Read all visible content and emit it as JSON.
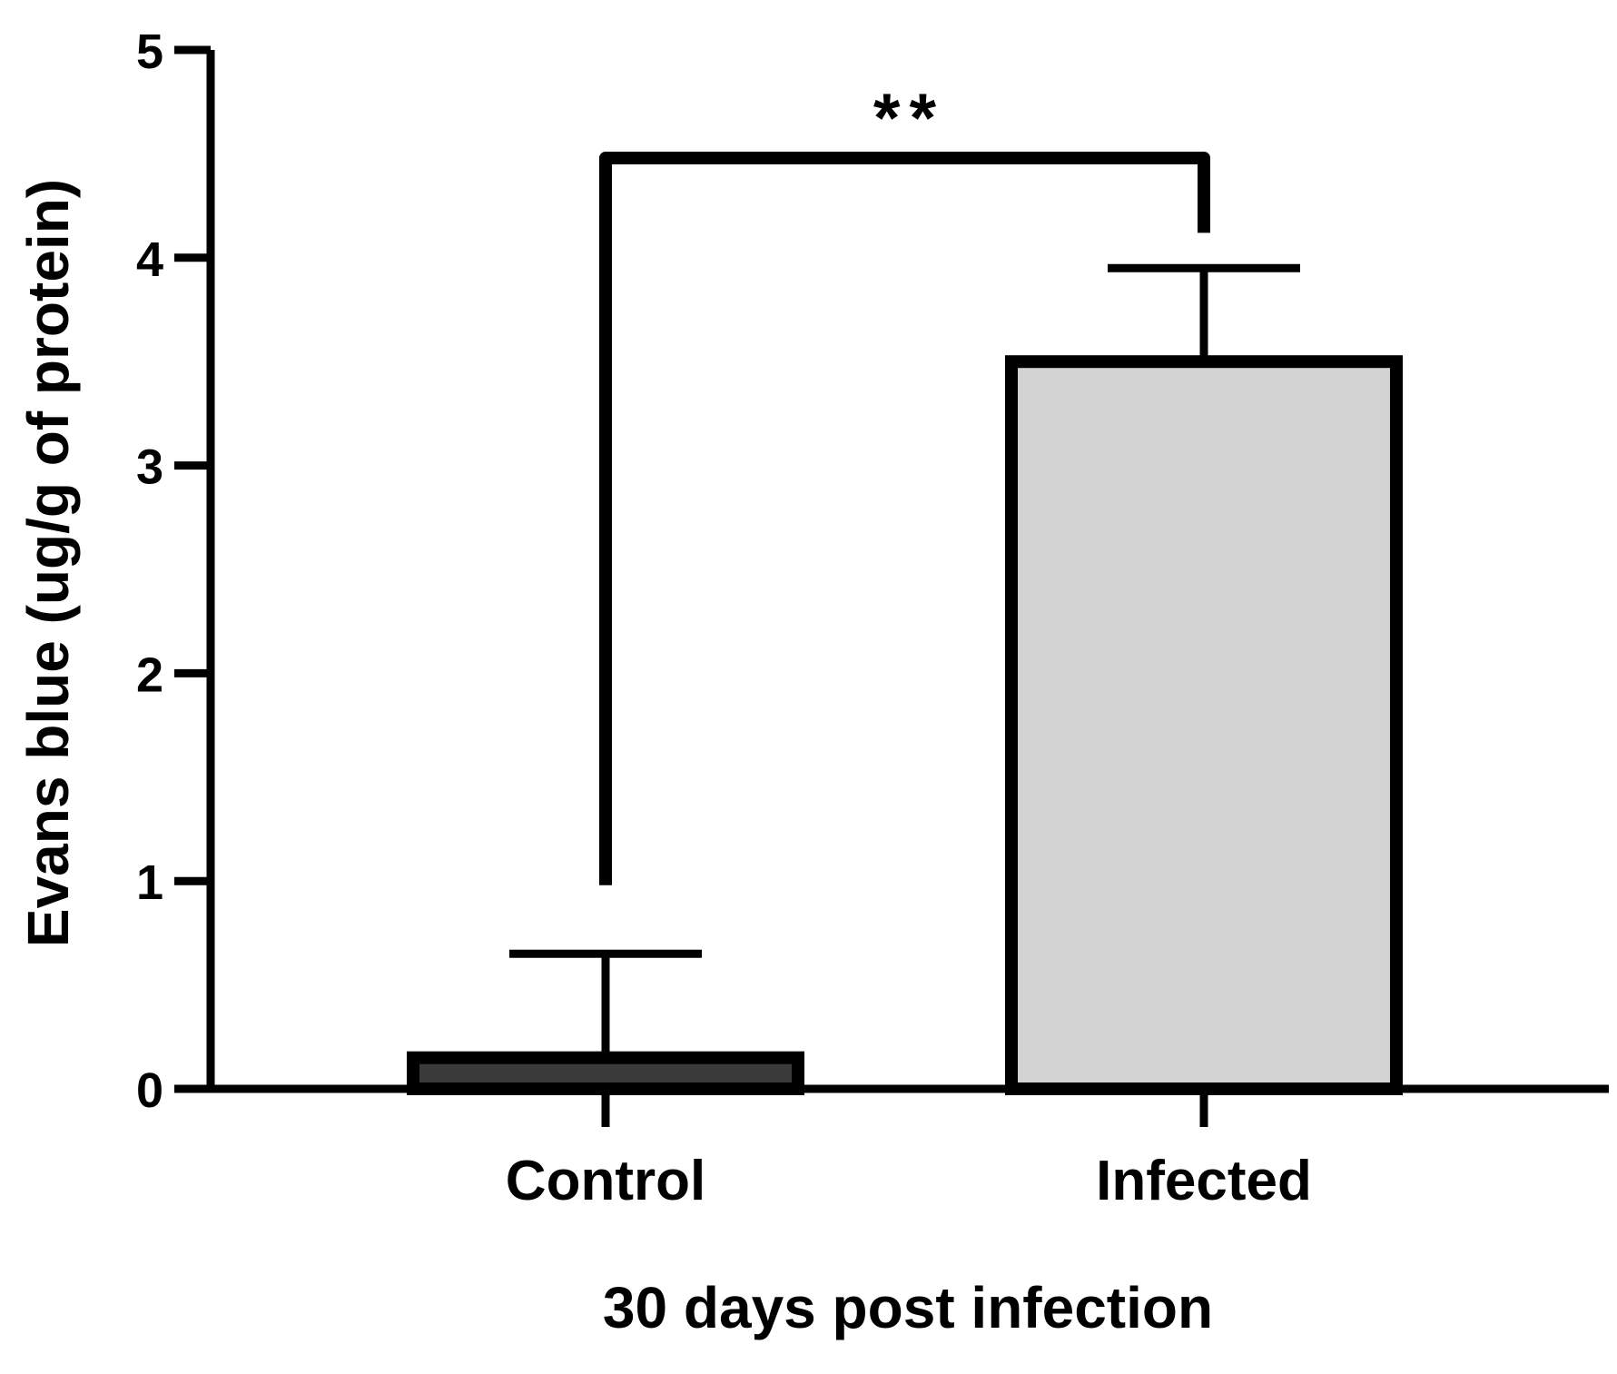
{
  "chart_data": {
    "type": "bar",
    "categories": [
      "Control",
      "Infected"
    ],
    "values": [
      0.15,
      3.5
    ],
    "errors": [
      0.5,
      0.45
    ],
    "fill_colors": [
      "#3a3a3a",
      "#d3d3d3"
    ],
    "title": "",
    "xlabel": "30 days post infection",
    "ylabel": "Evans blue (ug/g of protein)",
    "ylim": [
      0,
      5
    ],
    "yticks": [
      0,
      1,
      2,
      3,
      4,
      5
    ],
    "ytick_labels": [
      "0",
      "1",
      "2",
      "3",
      "4",
      "5"
    ],
    "grid": false,
    "legend": "none",
    "significance": {
      "label": "**",
      "from": "Control",
      "to": "Infected",
      "bracket_y": 4.48,
      "left_end_y": 0.98,
      "right_end_y": 4.12
    }
  }
}
